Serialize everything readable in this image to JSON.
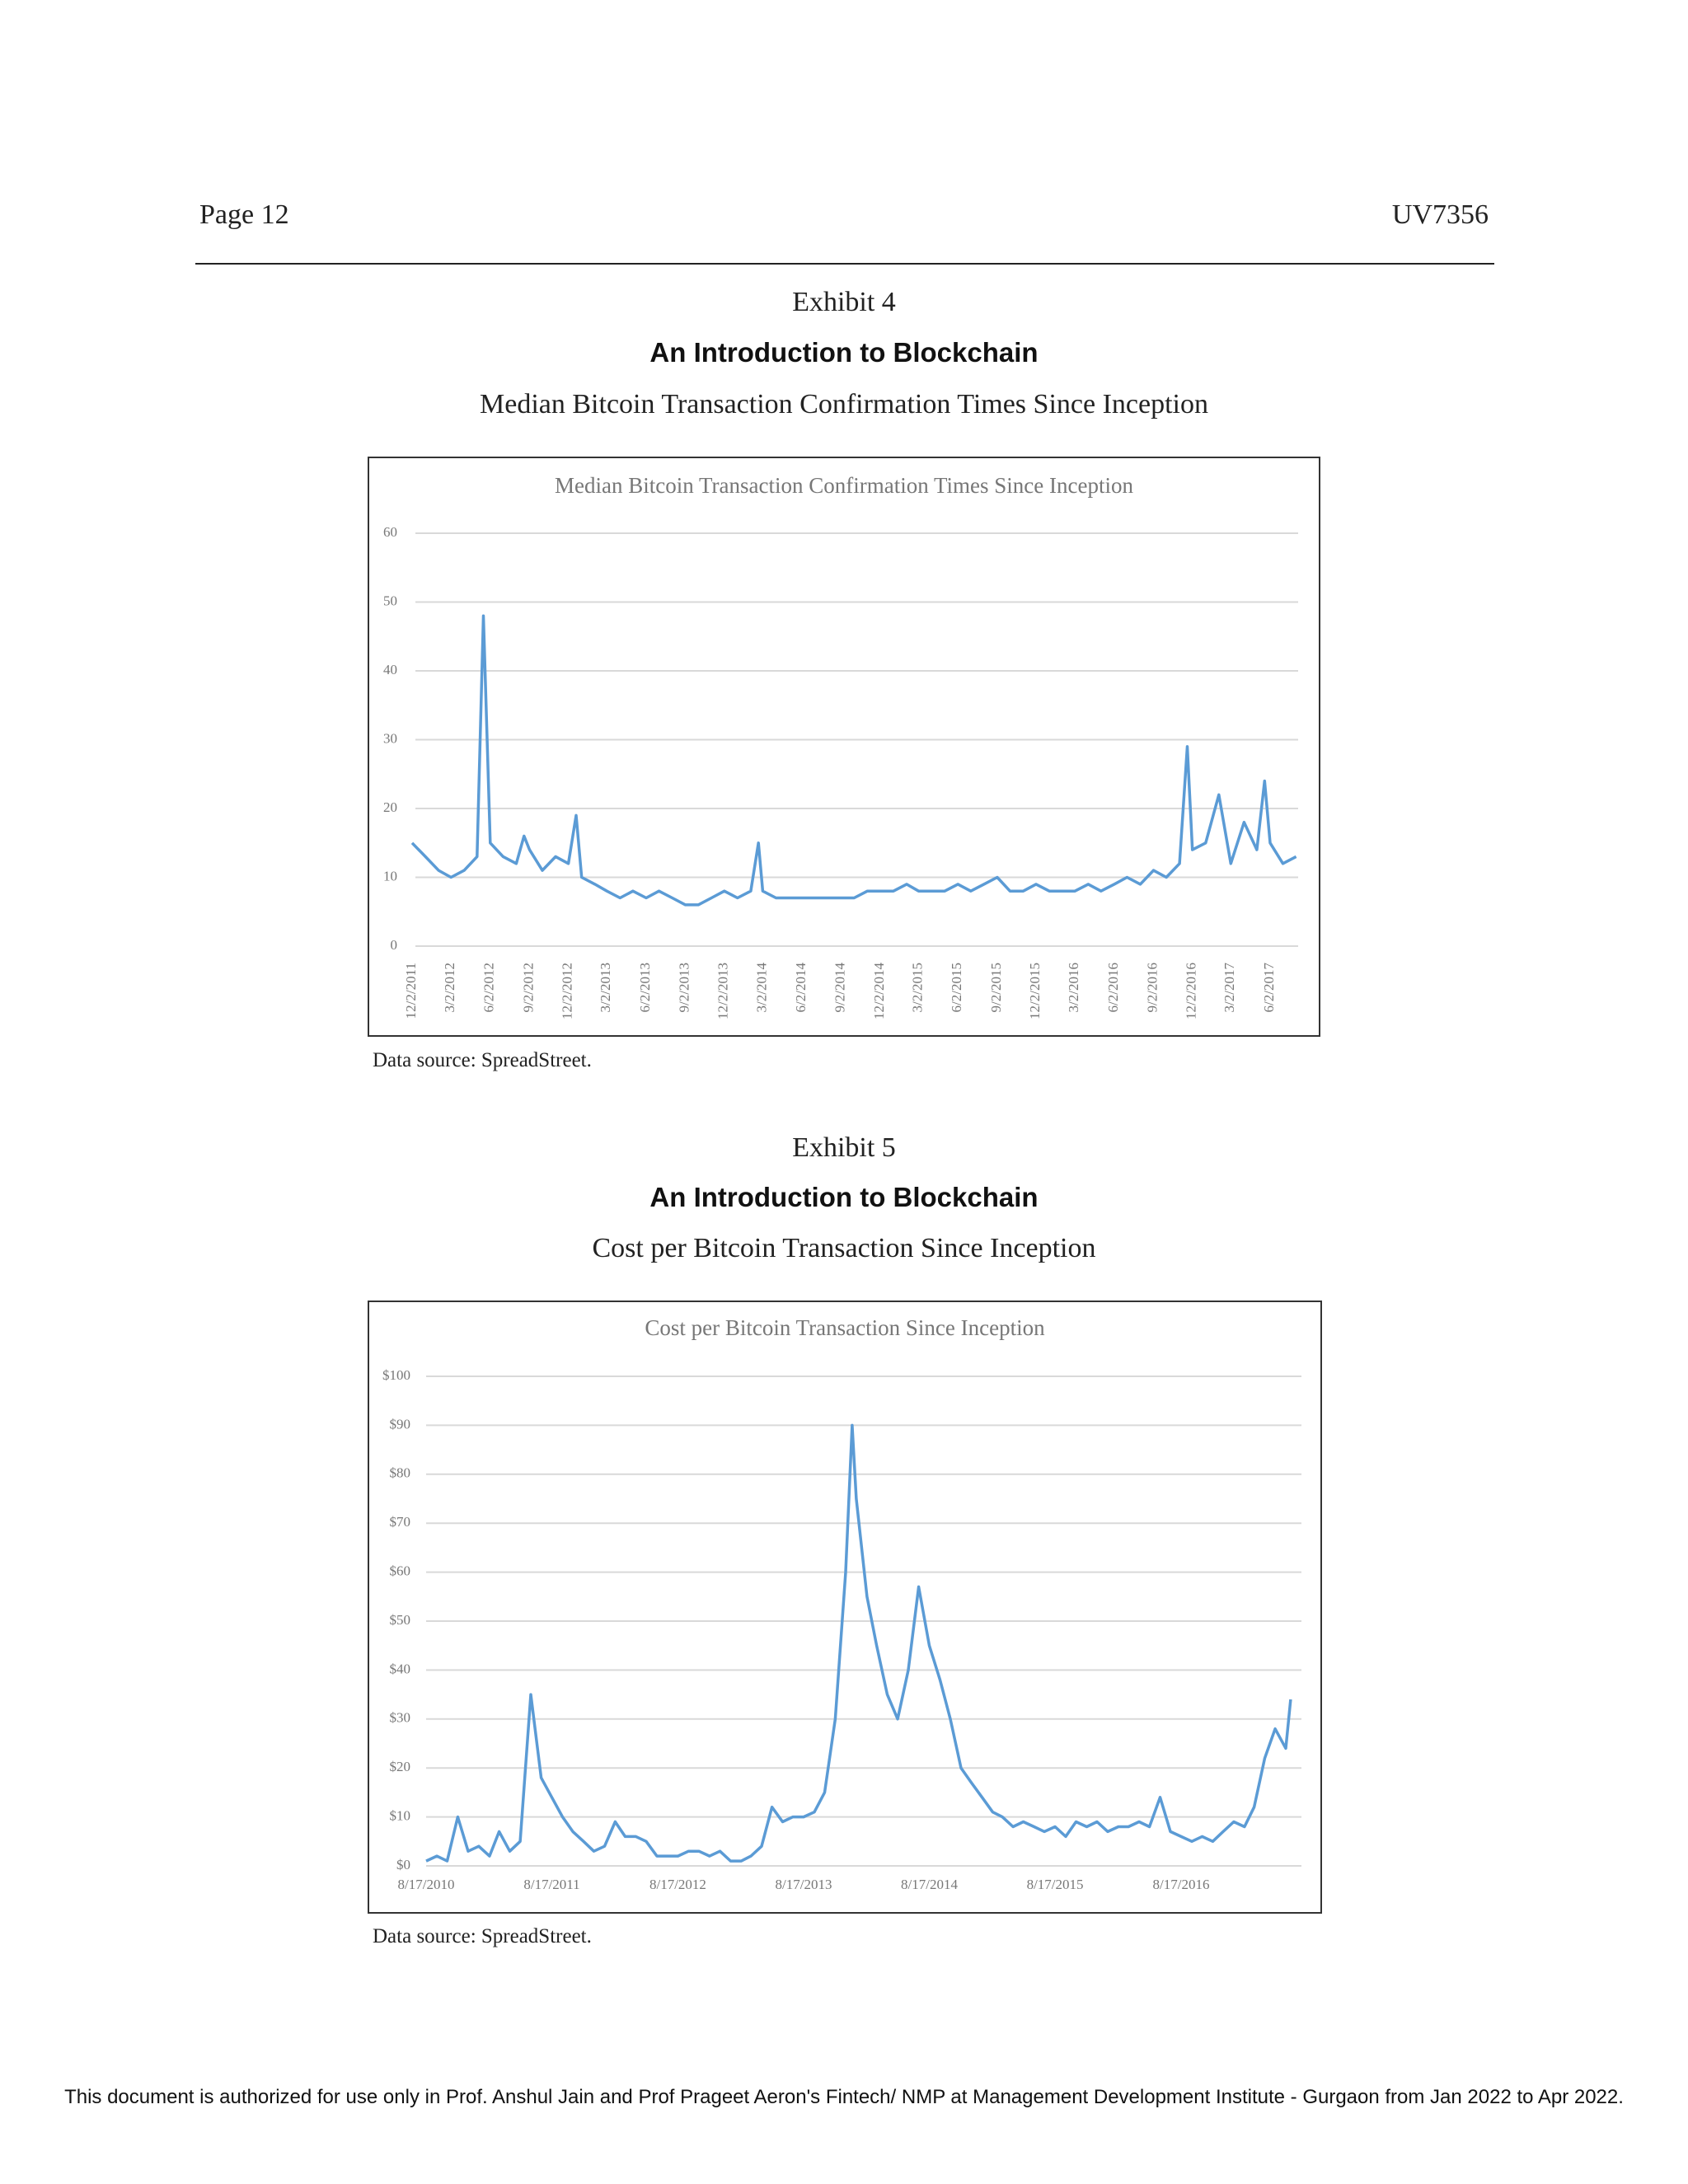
{
  "header": {
    "page": "Page 12",
    "code": "UV7356"
  },
  "exhibits": [
    {
      "label": "Exhibit 4",
      "heading": "An Introduction to Blockchain",
      "subtitle": "Median Bitcoin Transaction Confirmation Times Since Inception",
      "source": "Data source: SpreadStreet."
    },
    {
      "label": "Exhibit 5",
      "heading": "An Introduction to Blockchain",
      "subtitle": "Cost per Bitcoin Transaction Since Inception",
      "source": "Data source: SpreadStreet."
    }
  ],
  "chart_data": [
    {
      "type": "line",
      "title": "Median Bitcoin Transaction Confirmation Times Since Inception",
      "color": "#5b9bd5",
      "grid": true,
      "ylim": [
        0,
        60
      ],
      "yticks": [
        0,
        10,
        20,
        30,
        40,
        50,
        60
      ],
      "xticks": [
        "12/2/2011",
        "3/2/2012",
        "6/2/2012",
        "9/2/2012",
        "12/2/2012",
        "3/2/2013",
        "6/2/2013",
        "9/2/2013",
        "12/2/2013",
        "3/2/2014",
        "6/2/2014",
        "9/2/2014",
        "12/2/2014",
        "3/2/2015",
        "6/2/2015",
        "9/2/2015",
        "12/2/2015",
        "3/2/2016",
        "6/2/2016",
        "9/2/2016",
        "12/2/2016",
        "3/2/2017",
        "6/2/2017"
      ],
      "x": [
        "12/2/2011",
        "1/2/2012",
        "2/2/2012",
        "3/2/2012",
        "4/2/2012",
        "5/2/2012",
        "5/17/2012",
        "6/2/2012",
        "7/2/2012",
        "8/2/2012",
        "8/20/2012",
        "9/2/2012",
        "10/2/2012",
        "11/2/2012",
        "12/2/2012",
        "12/20/2012",
        "1/2/2013",
        "2/2/2013",
        "3/2/2013",
        "4/2/2013",
        "5/2/2013",
        "6/2/2013",
        "7/2/2013",
        "8/2/2013",
        "9/2/2013",
        "10/2/2013",
        "11/2/2013",
        "12/2/2013",
        "1/2/2014",
        "2/2/2014",
        "2/20/2014",
        "3/2/2014",
        "4/2/2014",
        "5/2/2014",
        "6/2/2014",
        "7/2/2014",
        "8/2/2014",
        "9/2/2014",
        "10/2/2014",
        "11/2/2014",
        "12/2/2014",
        "1/2/2015",
        "2/2/2015",
        "3/2/2015",
        "4/2/2015",
        "5/2/2015",
        "6/2/2015",
        "7/2/2015",
        "8/2/2015",
        "9/2/2015",
        "10/2/2015",
        "11/2/2015",
        "12/2/2015",
        "1/2/2016",
        "2/2/2016",
        "3/2/2016",
        "4/2/2016",
        "5/2/2016",
        "6/2/2016",
        "7/2/2016",
        "8/2/2016",
        "9/2/2016",
        "10/2/2016",
        "11/2/2016",
        "11/20/2016",
        "12/2/2016",
        "1/2/2017",
        "2/2/2017",
        "3/2/2017",
        "4/2/2017",
        "5/2/2017",
        "5/20/2017",
        "6/2/2017",
        "7/2/2017",
        "8/2/2017"
      ],
      "values": [
        15,
        13,
        11,
        10,
        11,
        13,
        48,
        15,
        13,
        12,
        16,
        14,
        11,
        13,
        12,
        19,
        10,
        9,
        8,
        7,
        8,
        7,
        8,
        7,
        6,
        6,
        7,
        8,
        7,
        8,
        15,
        8,
        7,
        7,
        7,
        7,
        7,
        7,
        7,
        8,
        8,
        8,
        9,
        8,
        8,
        8,
        9,
        8,
        9,
        10,
        8,
        8,
        9,
        8,
        8,
        8,
        9,
        8,
        9,
        10,
        9,
        11,
        10,
        12,
        29,
        14,
        15,
        22,
        12,
        18,
        14,
        24,
        15,
        12,
        13
      ]
    },
    {
      "type": "line",
      "title": "Cost per Bitcoin Transaction Since Inception",
      "color": "#5b9bd5",
      "grid": true,
      "ylim": [
        0,
        100
      ],
      "yticks": [
        {
          "value": 0,
          "label": "$0"
        },
        {
          "value": 10,
          "label": "$10"
        },
        {
          "value": 20,
          "label": "$20"
        },
        {
          "value": 30,
          "label": "$30"
        },
        {
          "value": 40,
          "label": "$40"
        },
        {
          "value": 50,
          "label": "$50"
        },
        {
          "value": 60,
          "label": "$60"
        },
        {
          "value": 70,
          "label": "$70"
        },
        {
          "value": 80,
          "label": "$80"
        },
        {
          "value": 90,
          "label": "$90"
        },
        {
          "value": 100,
          "label": "$100"
        }
      ],
      "xticks": [
        "8/17/2010",
        "8/17/2011",
        "8/17/2012",
        "8/17/2013",
        "8/17/2014",
        "8/17/2015",
        "8/17/2016"
      ],
      "x": [
        "8/17/2010",
        "9/17/2010",
        "10/17/2010",
        "11/17/2010",
        "12/17/2010",
        "1/17/2011",
        "2/17/2011",
        "3/17/2011",
        "4/17/2011",
        "5/17/2011",
        "6/17/2011",
        "7/17/2011",
        "8/17/2011",
        "9/17/2011",
        "10/17/2011",
        "11/17/2011",
        "12/17/2011",
        "1/17/2012",
        "2/17/2012",
        "3/17/2012",
        "4/17/2012",
        "5/17/2012",
        "6/17/2012",
        "7/17/2012",
        "8/17/2012",
        "9/17/2012",
        "10/17/2012",
        "11/17/2012",
        "12/17/2012",
        "1/17/2013",
        "2/17/2013",
        "3/17/2013",
        "4/17/2013",
        "5/17/2013",
        "6/17/2013",
        "7/17/2013",
        "8/17/2013",
        "9/17/2013",
        "10/17/2013",
        "11/17/2013",
        "12/17/2013",
        "1/5/2014",
        "1/17/2014",
        "2/17/2014",
        "3/17/2014",
        "4/17/2014",
        "5/17/2014",
        "6/17/2014",
        "7/17/2014",
        "8/17/2014",
        "9/17/2014",
        "10/17/2014",
        "11/17/2014",
        "12/17/2014",
        "1/17/2015",
        "2/17/2015",
        "3/17/2015",
        "4/17/2015",
        "5/17/2015",
        "6/17/2015",
        "7/17/2015",
        "8/17/2015",
        "9/17/2015",
        "10/17/2015",
        "11/17/2015",
        "12/17/2015",
        "1/17/2016",
        "2/17/2016",
        "3/17/2016",
        "4/17/2016",
        "5/17/2016",
        "6/17/2016",
        "7/17/2016",
        "8/17/2016",
        "9/17/2016",
        "10/17/2016",
        "11/17/2016",
        "12/17/2016",
        "1/17/2017",
        "2/17/2017",
        "3/17/2017",
        "4/17/2017",
        "5/17/2017",
        "6/17/2017",
        "7/1/2017"
      ],
      "values": [
        1,
        2,
        1,
        10,
        3,
        4,
        2,
        7,
        3,
        5,
        35,
        18,
        14,
        10,
        7,
        5,
        3,
        4,
        9,
        6,
        6,
        5,
        2,
        2,
        2,
        3,
        3,
        2,
        3,
        1,
        1,
        2,
        4,
        12,
        9,
        10,
        10,
        11,
        15,
        30,
        60,
        90,
        75,
        55,
        45,
        35,
        30,
        40,
        57,
        45,
        38,
        30,
        20,
        17,
        14,
        11,
        10,
        8,
        9,
        8,
        7,
        8,
        6,
        9,
        8,
        9,
        7,
        8,
        8,
        9,
        8,
        14,
        7,
        6,
        5,
        6,
        5,
        7,
        9,
        8,
        12,
        22,
        28,
        24,
        34
      ]
    }
  ],
  "footer": "This document is authorized for use only in Prof. Anshul Jain and Prof Prageet Aeron's Fintech/ NMP at Management Development Institute - Gurgaon from Jan 2022 to Apr 2022."
}
